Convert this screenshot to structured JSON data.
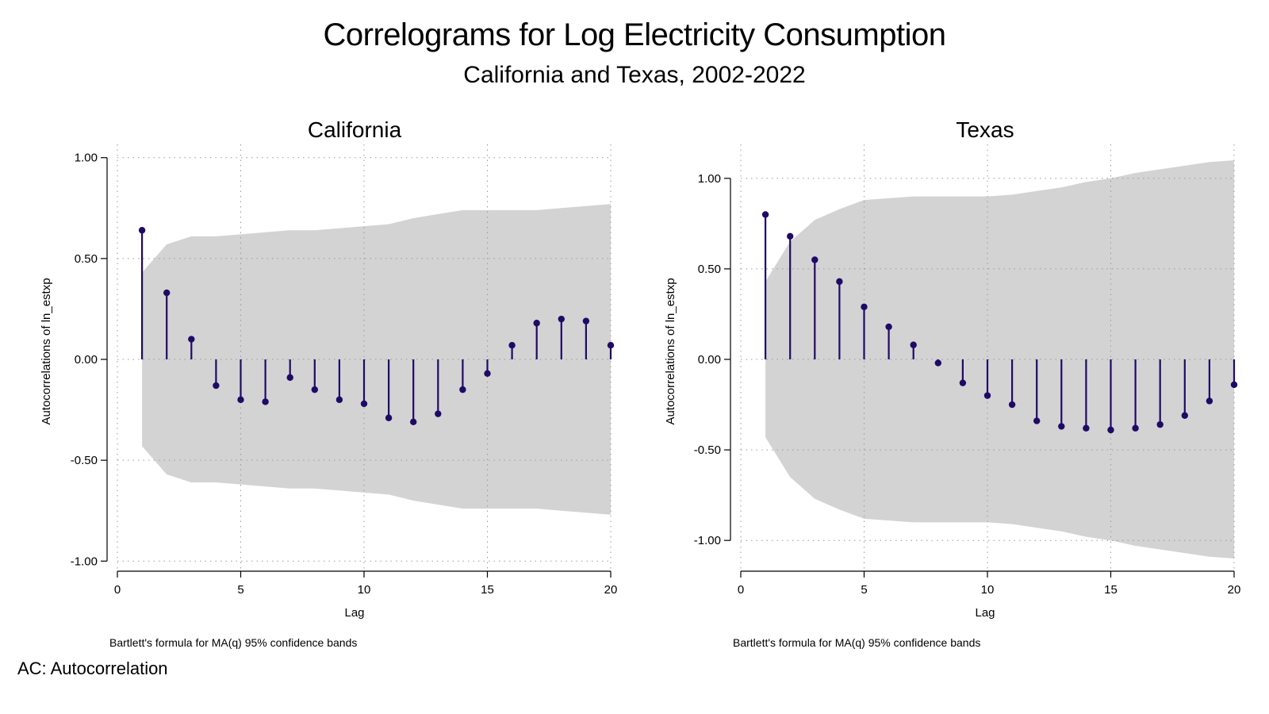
{
  "title": "Correlograms for Log Electricity Consumption",
  "subtitle": "California and Texas, 2002-2022",
  "footnote": "AC: Autocorrelation",
  "colors": {
    "band": "#d3d3d3",
    "marker": "#1f0a66",
    "grid": "#9a9a9a"
  },
  "chart_data": [
    {
      "type": "scatter",
      "title": "California",
      "xlabel": "Lag",
      "ylabel": "Autocorrelations of ln_estxp",
      "note": "Bartlett's formula for MA(q) 95% confidence bands",
      "xlim": [
        0,
        20
      ],
      "ylim": [
        -1.05,
        1.05
      ],
      "x_ticks": [
        0,
        5,
        10,
        15,
        20
      ],
      "x_tick_labels": [
        "0",
        "5",
        "10",
        "15",
        "20"
      ],
      "y_ticks": [
        -1,
        -0.5,
        0,
        0.5,
        1
      ],
      "y_tick_labels": [
        "-1.00",
        "-0.50",
        "0.00",
        "0.50",
        "1.00"
      ],
      "grid": true,
      "series": [
        {
          "type": "stem",
          "x": [
            1,
            2,
            3,
            4,
            5,
            6,
            7,
            8,
            9,
            10,
            11,
            12,
            13,
            14,
            15,
            16,
            17,
            18,
            19,
            20
          ],
          "values": [
            0.64,
            0.33,
            0.1,
            -0.13,
            -0.2,
            -0.21,
            -0.09,
            -0.15,
            -0.2,
            -0.22,
            -0.29,
            -0.31,
            -0.27,
            -0.15,
            -0.07,
            0.07,
            0.18,
            0.2,
            0.19,
            0.07
          ]
        },
        {
          "type": "band",
          "x": [
            1,
            2,
            3,
            4,
            5,
            6,
            7,
            8,
            9,
            10,
            11,
            12,
            13,
            14,
            15,
            16,
            17,
            18,
            19,
            20
          ],
          "values": [
            0.43,
            0.57,
            0.61,
            0.61,
            0.62,
            0.63,
            0.64,
            0.64,
            0.65,
            0.66,
            0.67,
            0.7,
            0.72,
            0.74,
            0.74,
            0.74,
            0.74,
            0.75,
            0.76,
            0.77
          ]
        }
      ]
    },
    {
      "type": "scatter",
      "title": "Texas",
      "xlabel": "Lag",
      "ylabel": "Autocorrelations of ln_estxp",
      "note": "Bartlett's formula for MA(q) 95% confidence bands",
      "xlim": [
        0,
        20
      ],
      "ylim": [
        -1.17,
        1.17
      ],
      "x_ticks": [
        0,
        5,
        10,
        15,
        20
      ],
      "x_tick_labels": [
        "0",
        "5",
        "10",
        "15",
        "20"
      ],
      "y_ticks": [
        -1,
        -0.5,
        0,
        0.5,
        1
      ],
      "y_tick_labels": [
        "-1.00",
        "-0.50",
        "0.00",
        "0.50",
        "1.00"
      ],
      "grid": true,
      "series": [
        {
          "type": "stem",
          "x": [
            1,
            2,
            3,
            4,
            5,
            6,
            7,
            8,
            9,
            10,
            11,
            12,
            13,
            14,
            15,
            16,
            17,
            18,
            19,
            20
          ],
          "values": [
            0.8,
            0.68,
            0.55,
            0.43,
            0.29,
            0.18,
            0.08,
            -0.02,
            -0.13,
            -0.2,
            -0.25,
            -0.34,
            -0.37,
            -0.38,
            -0.39,
            -0.38,
            -0.36,
            -0.31,
            -0.23,
            -0.14
          ]
        },
        {
          "type": "band",
          "x": [
            1,
            2,
            3,
            4,
            5,
            6,
            7,
            8,
            9,
            10,
            11,
            12,
            13,
            14,
            15,
            16,
            17,
            18,
            19,
            20
          ],
          "values": [
            0.43,
            0.65,
            0.77,
            0.83,
            0.88,
            0.89,
            0.9,
            0.9,
            0.9,
            0.9,
            0.91,
            0.93,
            0.95,
            0.98,
            1.0,
            1.03,
            1.05,
            1.07,
            1.09,
            1.1
          ]
        }
      ]
    }
  ]
}
